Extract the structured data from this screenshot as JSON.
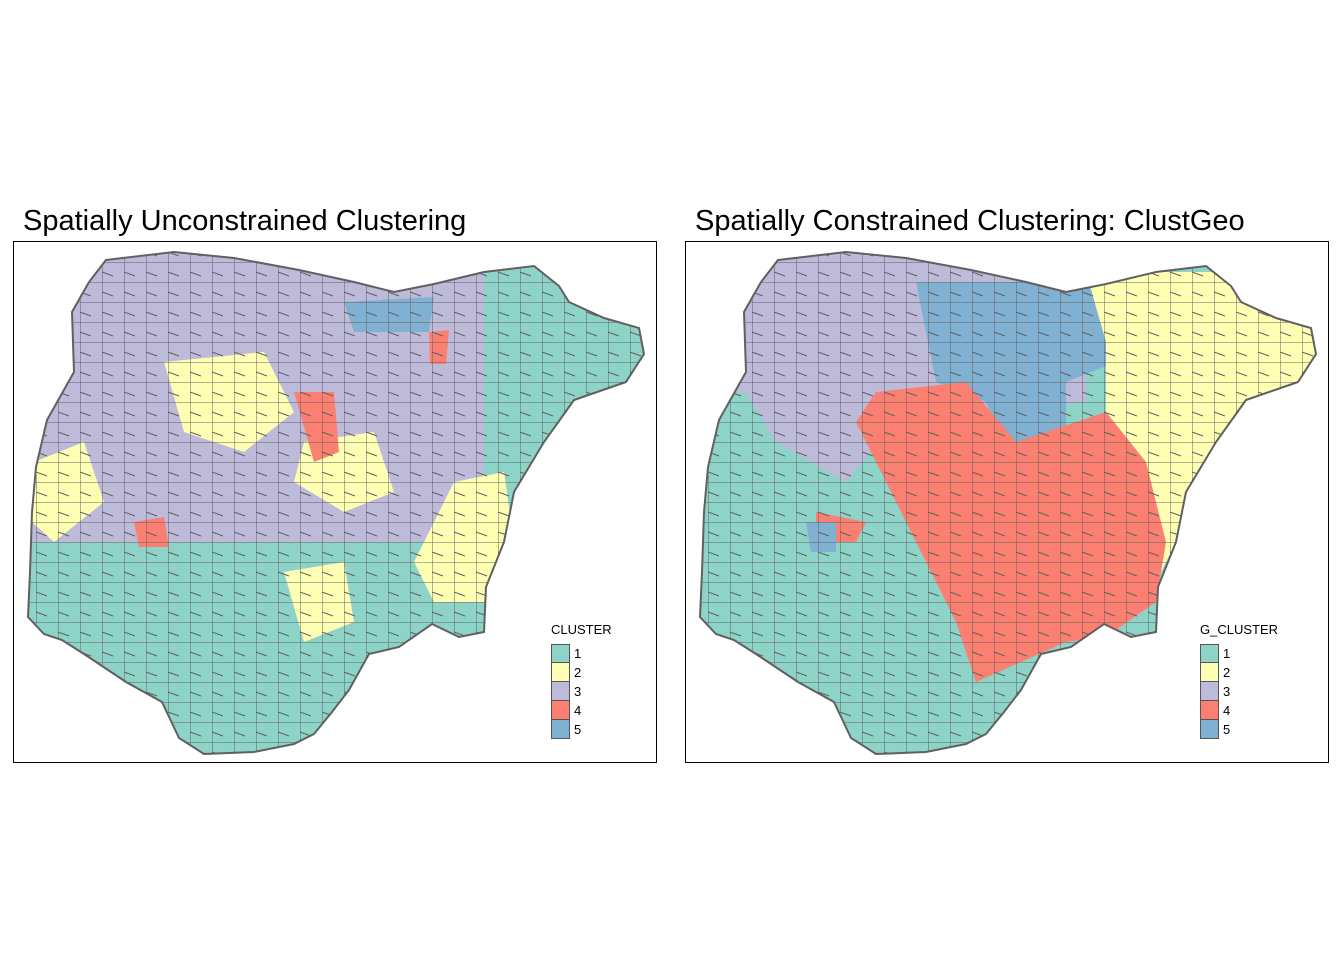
{
  "panels": [
    {
      "title": "Spatially Unconstrained Clustering",
      "legend": {
        "title": "CLUSTER",
        "items": [
          {
            "label": "1",
            "color": "#8DD3C7"
          },
          {
            "label": "2",
            "color": "#FFFFB3"
          },
          {
            "label": "3",
            "color": "#BEBADA"
          },
          {
            "label": "4",
            "color": "#FB8072"
          },
          {
            "label": "5",
            "color": "#80B1D3"
          }
        ]
      }
    },
    {
      "title": "Spatially Constrained Clustering: ClustGeo",
      "legend": {
        "title": "G_CLUSTER",
        "items": [
          {
            "label": "1",
            "color": "#8DD3C7"
          },
          {
            "label": "2",
            "color": "#FFFFB3"
          },
          {
            "label": "3",
            "color": "#BEBADA"
          },
          {
            "label": "4",
            "color": "#FB8072"
          },
          {
            "label": "5",
            "color": "#80B1D3"
          }
        ]
      }
    }
  ],
  "style": {
    "boundary_color": "#606060"
  }
}
